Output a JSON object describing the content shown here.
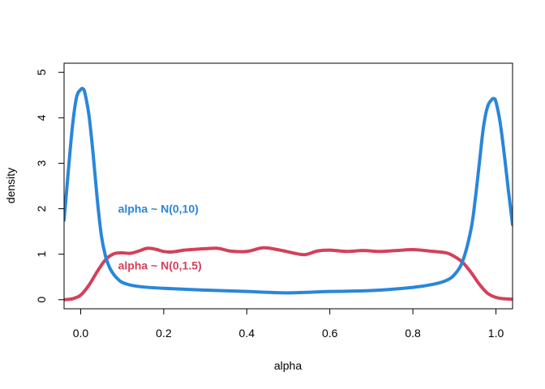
{
  "chart_data": {
    "type": "line",
    "xlabel": "alpha",
    "ylabel": "density",
    "xlim": [
      -0.04,
      1.04
    ],
    "ylim": [
      -0.2,
      5.2
    ],
    "x_ticks": [
      0.0,
      0.2,
      0.4,
      0.6,
      0.8,
      1.0
    ],
    "x_tick_labels": [
      "0.0",
      "0.2",
      "0.4",
      "0.6",
      "0.8",
      "1.0"
    ],
    "y_ticks": [
      0,
      1,
      2,
      3,
      4,
      5
    ],
    "y_tick_labels": [
      "0",
      "1",
      "2",
      "3",
      "4",
      "5"
    ],
    "grid": false,
    "legend": "none",
    "series": [
      {
        "label": "alpha ~ N(0,10)",
        "color": "#2a86d9",
        "label_at": [
          0.09,
          2.0
        ],
        "x": [
          -0.04,
          -0.03,
          -0.02,
          -0.01,
          0.0,
          0.005,
          0.01,
          0.02,
          0.03,
          0.04,
          0.05,
          0.06,
          0.07,
          0.08,
          0.09,
          0.1,
          0.12,
          0.15,
          0.2,
          0.3,
          0.4,
          0.5,
          0.6,
          0.7,
          0.8,
          0.85,
          0.88,
          0.9,
          0.92,
          0.94,
          0.95,
          0.96,
          0.97,
          0.98,
          0.99,
          0.995,
          1.0,
          1.01,
          1.02,
          1.03,
          1.04
        ],
        "values": [
          1.75,
          2.8,
          3.8,
          4.45,
          4.62,
          4.64,
          4.55,
          4.05,
          3.2,
          2.2,
          1.4,
          0.95,
          0.7,
          0.55,
          0.45,
          0.38,
          0.32,
          0.28,
          0.25,
          0.21,
          0.18,
          0.15,
          0.18,
          0.2,
          0.27,
          0.34,
          0.42,
          0.55,
          0.85,
          1.55,
          2.2,
          3.0,
          3.8,
          4.25,
          4.4,
          4.42,
          4.35,
          3.9,
          3.2,
          2.4,
          1.65
        ]
      },
      {
        "label": "alpha ~ N(0,1.5)",
        "color": "#d4405a",
        "label_at": [
          0.09,
          0.75
        ],
        "x": [
          -0.04,
          -0.02,
          0.0,
          0.02,
          0.04,
          0.06,
          0.08,
          0.1,
          0.12,
          0.14,
          0.16,
          0.18,
          0.2,
          0.22,
          0.25,
          0.28,
          0.3,
          0.33,
          0.36,
          0.4,
          0.44,
          0.48,
          0.51,
          0.54,
          0.57,
          0.6,
          0.64,
          0.68,
          0.72,
          0.76,
          0.8,
          0.84,
          0.88,
          0.9,
          0.92,
          0.94,
          0.96,
          0.98,
          1.0,
          1.02,
          1.04
        ],
        "values": [
          0.0,
          0.02,
          0.1,
          0.32,
          0.62,
          0.88,
          1.01,
          1.03,
          1.02,
          1.07,
          1.13,
          1.11,
          1.06,
          1.05,
          1.09,
          1.11,
          1.12,
          1.13,
          1.07,
          1.06,
          1.14,
          1.09,
          1.03,
          0.99,
          1.07,
          1.09,
          1.06,
          1.08,
          1.06,
          1.08,
          1.1,
          1.07,
          1.03,
          0.95,
          0.82,
          0.6,
          0.34,
          0.14,
          0.05,
          0.02,
          0.01
        ]
      }
    ]
  }
}
